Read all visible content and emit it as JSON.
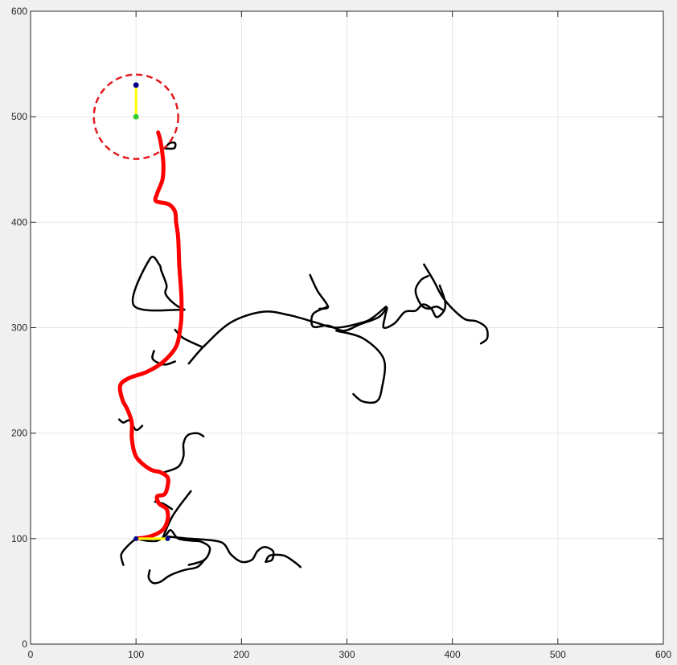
{
  "chart_data": {
    "type": "line",
    "title": "",
    "xlabel": "",
    "ylabel": "",
    "xlim": [
      0,
      600
    ],
    "ylim": [
      0,
      600
    ],
    "grid": true,
    "x_ticks": [
      "0",
      "100",
      "200",
      "300",
      "400",
      "500",
      "600"
    ],
    "y_ticks": [
      "0",
      "100",
      "200",
      "300",
      "400",
      "500",
      "600"
    ],
    "colors": {
      "tree": "#000000",
      "path": "#ff0000",
      "goal_region": "#e41a1c",
      "marker_heading": "#ffff00",
      "marker_start": "#00008b",
      "marker_goal": "#32cd32",
      "grid": "#e6e6e6",
      "axes_background": "#ffffff",
      "figure_background": "#f0f0f0"
    },
    "goal_region": {
      "center": [
        100,
        500
      ],
      "radius": 40,
      "style": "dashed"
    },
    "start": {
      "point": [
        100,
        100
      ],
      "heading_point": [
        130,
        100
      ]
    },
    "goal": {
      "point": [
        100,
        500
      ],
      "heading_point": [
        100,
        530
      ]
    },
    "tree_branches": [
      [
        [
          88,
          75
        ],
        [
          86,
          85
        ],
        [
          93,
          94
        ],
        [
          100,
          100
        ]
      ],
      [
        [
          100,
          100
        ],
        [
          110,
          98
        ],
        [
          120,
          98
        ],
        [
          128,
          103
        ],
        [
          133,
          108
        ],
        [
          140,
          100
        ],
        [
          153,
          98
        ],
        [
          162,
          97
        ],
        [
          170,
          91
        ],
        [
          165,
          80
        ],
        [
          150,
          75
        ]
      ],
      [
        [
          113,
          70
        ],
        [
          112,
          63
        ],
        [
          116,
          58
        ],
        [
          123,
          59
        ],
        [
          132,
          65
        ],
        [
          145,
          70
        ],
        [
          158,
          73
        ],
        [
          165,
          80
        ]
      ],
      [
        [
          125,
          100
        ],
        [
          135,
          122
        ],
        [
          152,
          145
        ]
      ],
      [
        [
          130,
          102
        ],
        [
          150,
          100
        ],
        [
          165,
          99
        ],
        [
          182,
          96
        ],
        [
          190,
          85
        ],
        [
          200,
          78
        ],
        [
          210,
          80
        ],
        [
          215,
          88
        ],
        [
          222,
          92
        ],
        [
          230,
          88
        ],
        [
          229,
          80
        ],
        [
          223,
          78
        ]
      ],
      [
        [
          223,
          78
        ],
        [
          227,
          84
        ],
        [
          240,
          84
        ],
        [
          250,
          78
        ],
        [
          256,
          73
        ]
      ],
      [
        [
          118,
          135
        ],
        [
          126,
          133
        ],
        [
          134,
          128
        ]
      ],
      [
        [
          127,
          163
        ],
        [
          140,
          168
        ],
        [
          145,
          178
        ],
        [
          145,
          190
        ],
        [
          149,
          198
        ],
        [
          158,
          200
        ],
        [
          164,
          197
        ]
      ],
      [
        [
          106,
          207
        ],
        [
          100,
          203
        ],
        [
          94,
          212
        ],
        [
          88,
          210
        ],
        [
          84,
          213
        ]
      ],
      [
        [
          137,
          268
        ],
        [
          127,
          265
        ],
        [
          116,
          270
        ],
        [
          117,
          278
        ]
      ],
      [
        [
          150,
          266
        ],
        [
          165,
          283
        ],
        [
          190,
          305
        ],
        [
          220,
          315
        ],
        [
          245,
          312
        ],
        [
          270,
          305
        ],
        [
          290,
          300
        ],
        [
          315,
          305
        ],
        [
          325,
          310
        ],
        [
          337,
          320
        ]
      ],
      [
        [
          137,
          298
        ],
        [
          145,
          290
        ],
        [
          162,
          282
        ]
      ],
      [
        [
          146,
          317
        ],
        [
          137,
          322
        ],
        [
          128,
          332
        ],
        [
          129,
          340
        ],
        [
          124,
          354
        ],
        [
          122,
          360
        ],
        [
          113,
          365
        ],
        [
          98,
          321
        ],
        [
          146,
          317
        ]
      ],
      [
        [
          265,
          350
        ],
        [
          272,
          335
        ],
        [
          282,
          320
        ],
        [
          274,
          318
        ]
      ],
      [
        [
          282,
          320
        ],
        [
          268,
          313
        ],
        [
          268,
          301
        ],
        [
          282,
          302
        ],
        [
          297,
          297
        ],
        [
          312,
          303
        ],
        [
          330,
          310
        ],
        [
          338,
          319
        ]
      ],
      [
        [
          290,
          297
        ],
        [
          315,
          290
        ],
        [
          335,
          270
        ],
        [
          333,
          242
        ],
        [
          328,
          230
        ],
        [
          315,
          230
        ],
        [
          306,
          237
        ]
      ],
      [
        [
          338,
          318
        ],
        [
          336,
          310
        ],
        [
          335,
          300
        ],
        [
          345,
          304
        ],
        [
          355,
          315
        ],
        [
          365,
          316
        ],
        [
          372,
          322
        ],
        [
          380,
          318
        ],
        [
          385,
          310
        ],
        [
          392,
          316
        ],
        [
          393,
          325
        ],
        [
          388,
          340
        ]
      ],
      [
        [
          377,
          349
        ],
        [
          370,
          345
        ],
        [
          365,
          335
        ],
        [
          370,
          322
        ],
        [
          377,
          318
        ],
        [
          385,
          320
        ],
        [
          392,
          316
        ]
      ],
      [
        [
          373,
          360
        ],
        [
          382,
          345
        ],
        [
          390,
          330
        ],
        [
          400,
          318
        ],
        [
          412,
          308
        ],
        [
          423,
          306
        ],
        [
          432,
          300
        ],
        [
          433,
          290
        ],
        [
          427,
          285
        ]
      ],
      [
        [
          127,
          470
        ],
        [
          132,
          475
        ],
        [
          137,
          475
        ],
        [
          136,
          470
        ],
        [
          127,
          470
        ]
      ]
    ],
    "path": [
      [
        100,
        100
      ],
      [
        113,
        102
      ],
      [
        125,
        108
      ],
      [
        130,
        118
      ],
      [
        129,
        128
      ],
      [
        122,
        133
      ],
      [
        120,
        140
      ],
      [
        127,
        142
      ],
      [
        130,
        150
      ],
      [
        130,
        158
      ],
      [
        123,
        163
      ],
      [
        115,
        165
      ],
      [
        105,
        172
      ],
      [
        99,
        180
      ],
      [
        96,
        195
      ],
      [
        96,
        210
      ],
      [
        92,
        222
      ],
      [
        87,
        232
      ],
      [
        85,
        245
      ],
      [
        93,
        252
      ],
      [
        110,
        258
      ],
      [
        125,
        267
      ],
      [
        138,
        282
      ],
      [
        142,
        300
      ],
      [
        143,
        310
      ],
      [
        143,
        330
      ],
      [
        141,
        360
      ],
      [
        140,
        385
      ],
      [
        138,
        400
      ],
      [
        137,
        410
      ],
      [
        131,
        417
      ],
      [
        119,
        420
      ],
      [
        120,
        427
      ],
      [
        125,
        440
      ],
      [
        126,
        453
      ],
      [
        125,
        465
      ],
      [
        123,
        478
      ],
      [
        121,
        485
      ]
    ]
  }
}
